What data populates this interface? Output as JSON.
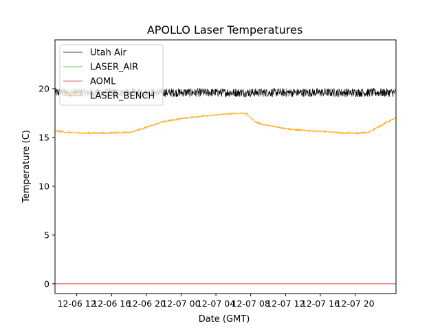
{
  "chart_data": {
    "type": "line",
    "title": "APOLLO Laser Temperatures",
    "xlabel": "Date (GMT)",
    "ylabel": "Temperature (C)",
    "xlim_hours": [
      9.5,
      48.7
    ],
    "ylim": [
      -1,
      25
    ],
    "x_tick_hours": [
      12,
      16,
      20,
      24,
      28,
      32,
      36,
      40,
      44
    ],
    "x_tick_labels": [
      "12-06 12",
      "12-06 16",
      "12-06 20",
      "12-07 00",
      "12-07 04",
      "12-07 08",
      "12-07 12",
      "12-07 16",
      "12-07 20"
    ],
    "y_ticks": [
      0,
      5,
      10,
      15,
      20
    ],
    "y_tick_labels": [
      "0",
      "5",
      "10",
      "15",
      "20"
    ],
    "legend": {
      "placement": "upper-left",
      "entries": [
        "Utah Air",
        "LASER_AIR",
        "AOML",
        "LASER_BENCH"
      ]
    },
    "series": [
      {
        "name": "Utah Air",
        "color": "#000000",
        "kind": "noisy-band",
        "center": 19.6,
        "noise_amplitude": 0.45,
        "x_hours": [
          9.5,
          48.7
        ]
      },
      {
        "name": "LASER_AIR",
        "color": "#2ca02c",
        "kind": "empty"
      },
      {
        "name": "AOML",
        "color": "#d62728",
        "kind": "constant",
        "value": 0,
        "x_hours": [
          9.5,
          48.7
        ]
      },
      {
        "name": "LASER_BENCH",
        "color": "#ffa500",
        "kind": "line",
        "noise_amplitude": 0.08,
        "x_hours": [
          9.5,
          10.5,
          11.5,
          12.5,
          13.5,
          14.5,
          15.5,
          16.5,
          17.5,
          18,
          18.5,
          19.5,
          20.5,
          21.5,
          22.5,
          23.5,
          24.5,
          25.5,
          26.5,
          27.5,
          28.5,
          29.3,
          30.0,
          30.7,
          31.5,
          32.5,
          33.5,
          34.5,
          35.5,
          36.5,
          37.5,
          38.5,
          39.5,
          40.5,
          41.5,
          42.0,
          42.5,
          43.5,
          44.5,
          45.5,
          46.5,
          47.5,
          48.7
        ],
        "values": [
          15.7,
          15.55,
          15.5,
          15.45,
          15.45,
          15.45,
          15.45,
          15.5,
          15.5,
          15.5,
          15.6,
          15.9,
          16.2,
          16.5,
          16.7,
          16.85,
          17.0,
          17.1,
          17.2,
          17.25,
          17.35,
          17.4,
          17.45,
          17.5,
          17.45,
          16.6,
          16.3,
          16.15,
          16.0,
          15.85,
          15.75,
          15.7,
          15.65,
          15.6,
          15.55,
          15.5,
          15.45,
          15.45,
          15.45,
          15.5,
          16.0,
          16.5,
          17.0
        ]
      }
    ]
  }
}
